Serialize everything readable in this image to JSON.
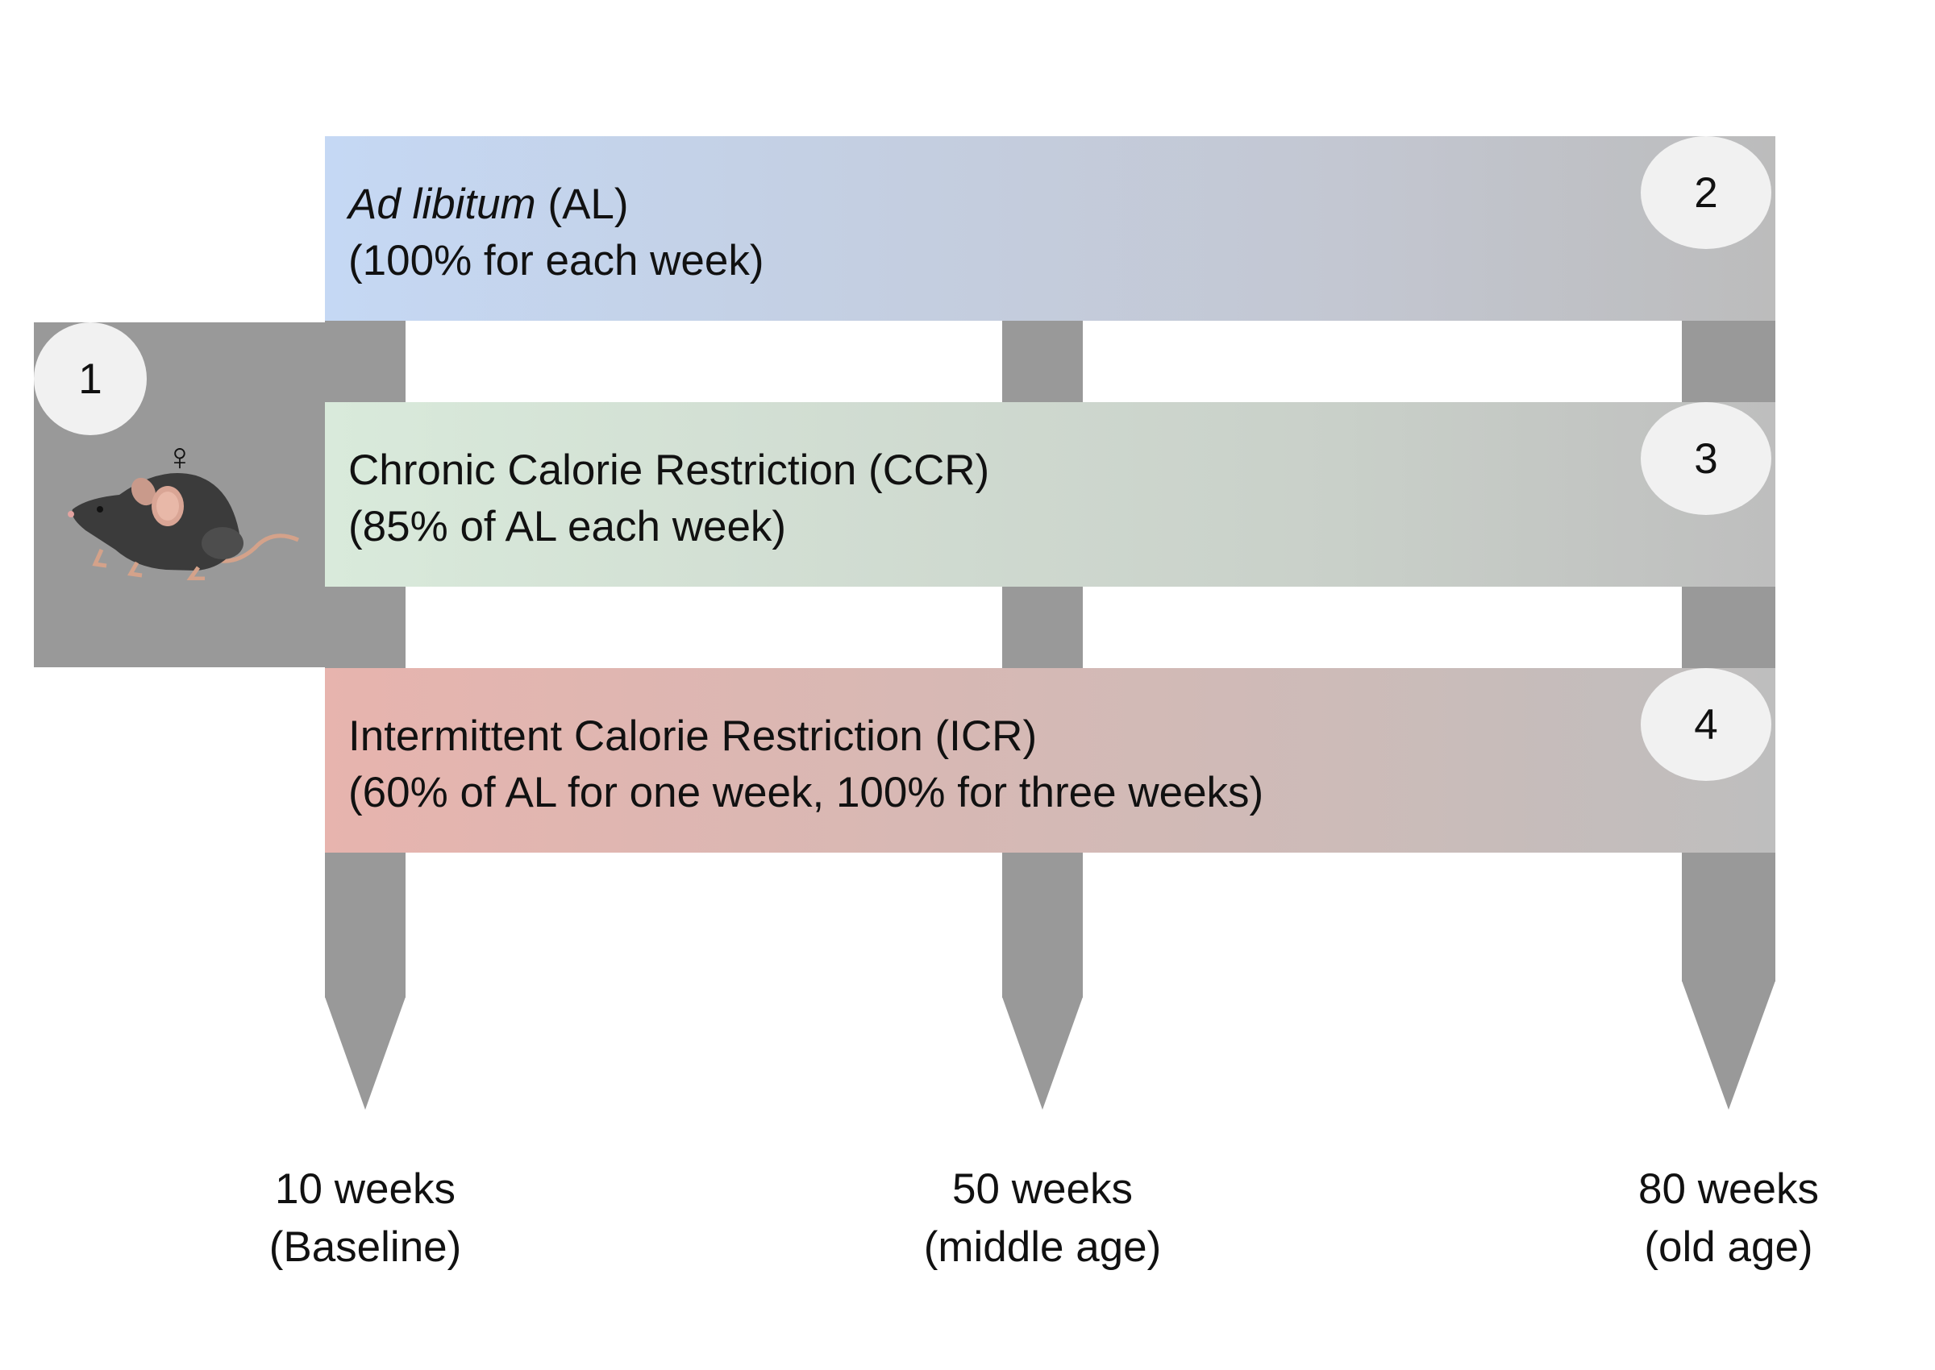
{
  "groups": [
    {
      "number": "1",
      "sex_symbol": "♀",
      "subject_icon": "mouse-icon"
    },
    {
      "number": "2",
      "name_italic": "Ad libitum",
      "name_rest": " (AL)",
      "detail": "(100% for each week)",
      "color": "#c5d8f4"
    },
    {
      "number": "3",
      "name": "Chronic Calorie Restriction (CCR)",
      "detail": "(85% of AL each week)",
      "color": "#d9eadb"
    },
    {
      "number": "4",
      "name": "Intermittent Calorie Restriction (ICR)",
      "detail": "(60% of AL for one week, 100% for three weeks)",
      "color": "#e7b4ae"
    }
  ],
  "timepoints": [
    {
      "age": "10 weeks",
      "stage": "(Baseline)"
    },
    {
      "age": "50 weeks",
      "stage": "(middle age)"
    },
    {
      "age": "80 weeks",
      "stage": "(old age)"
    }
  ],
  "colors": {
    "post": "#999999",
    "badge": "#f1f1f1"
  }
}
